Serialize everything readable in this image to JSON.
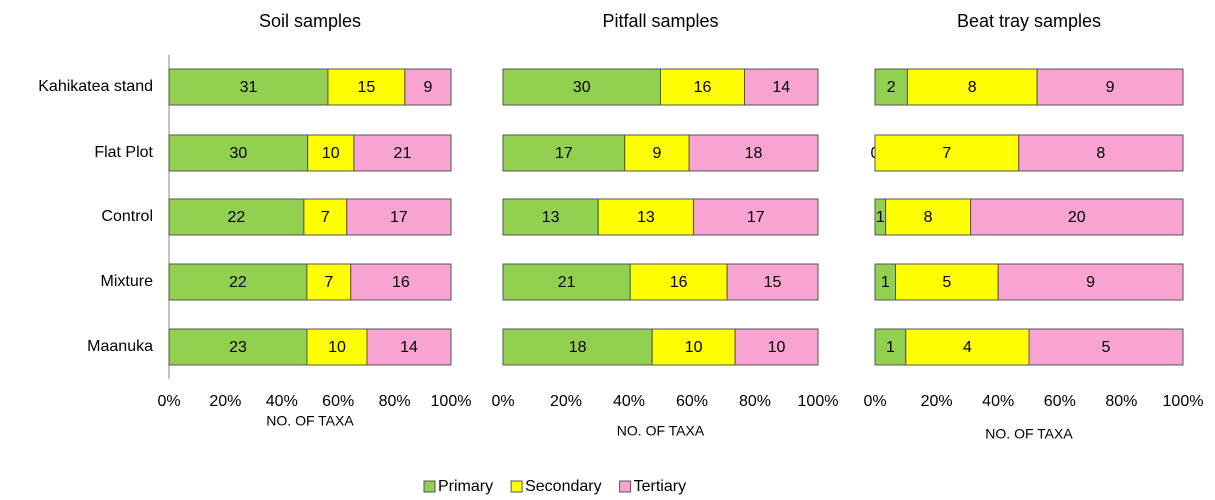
{
  "chart_data": [
    {
      "type": "stacked-bar-percent",
      "title": "Soil samples",
      "xlabel": "NO. OF TAXA",
      "categories": [
        "Kahikatea stand",
        "Flat Plot",
        "Control",
        "Mixture",
        "Maanuka"
      ],
      "series": [
        {
          "name": "Primary",
          "color": "#92d050",
          "values": [
            31,
            30,
            22,
            22,
            23
          ]
        },
        {
          "name": "Secondary",
          "color": "#ffff00",
          "values": [
            15,
            10,
            7,
            7,
            10
          ]
        },
        {
          "name": "Tertiary",
          "color": "#f9a3d2",
          "values": [
            9,
            21,
            17,
            16,
            14
          ]
        }
      ],
      "xlim": [
        0,
        100
      ],
      "xticks": [
        {
          "value": 0,
          "label": "0%"
        },
        {
          "value": 20,
          "label": "20%"
        },
        {
          "value": 40,
          "label": "40%"
        },
        {
          "value": 60,
          "label": "60%"
        },
        {
          "value": 80,
          "label": "80%"
        },
        {
          "value": 100,
          "label": "100%"
        }
      ]
    },
    {
      "type": "stacked-bar-percent",
      "title": "Pitfall samples",
      "xlabel": "NO. OF TAXA",
      "series": [
        {
          "name": "Primary",
          "color": "#92d050",
          "values": [
            30,
            17,
            13,
            21,
            18
          ]
        },
        {
          "name": "Secondary",
          "color": "#ffff00",
          "values": [
            16,
            9,
            13,
            16,
            10
          ]
        },
        {
          "name": "Tertiary",
          "color": "#f9a3d2",
          "values": [
            14,
            18,
            17,
            15,
            10
          ]
        }
      ],
      "xlim": [
        0,
        100
      ],
      "xticks": [
        {
          "value": 0,
          "label": "0%"
        },
        {
          "value": 20,
          "label": "20%"
        },
        {
          "value": 40,
          "label": "40%"
        },
        {
          "value": 60,
          "label": "60%"
        },
        {
          "value": 80,
          "label": "80%"
        },
        {
          "value": 100,
          "label": "100%"
        }
      ]
    },
    {
      "type": "stacked-bar-percent",
      "title": "Beat tray samples",
      "xlabel": "NO. OF TAXA",
      "series": [
        {
          "name": "Primary",
          "color": "#92d050",
          "values": [
            2,
            0,
            1,
            1,
            1
          ]
        },
        {
          "name": "Secondary",
          "color": "#ffff00",
          "values": [
            8,
            7,
            8,
            5,
            4
          ]
        },
        {
          "name": "Tertiary",
          "color": "#f9a3d2",
          "values": [
            9,
            8,
            20,
            9,
            5
          ]
        }
      ],
      "xlim": [
        0,
        100
      ],
      "xticks": [
        {
          "value": 0,
          "label": "0%"
        },
        {
          "value": 20,
          "label": "20%"
        },
        {
          "value": 40,
          "label": "40%"
        },
        {
          "value": 60,
          "label": "60%"
        },
        {
          "value": 80,
          "label": "80%"
        },
        {
          "value": 100,
          "label": "100%"
        }
      ]
    }
  ]
}
